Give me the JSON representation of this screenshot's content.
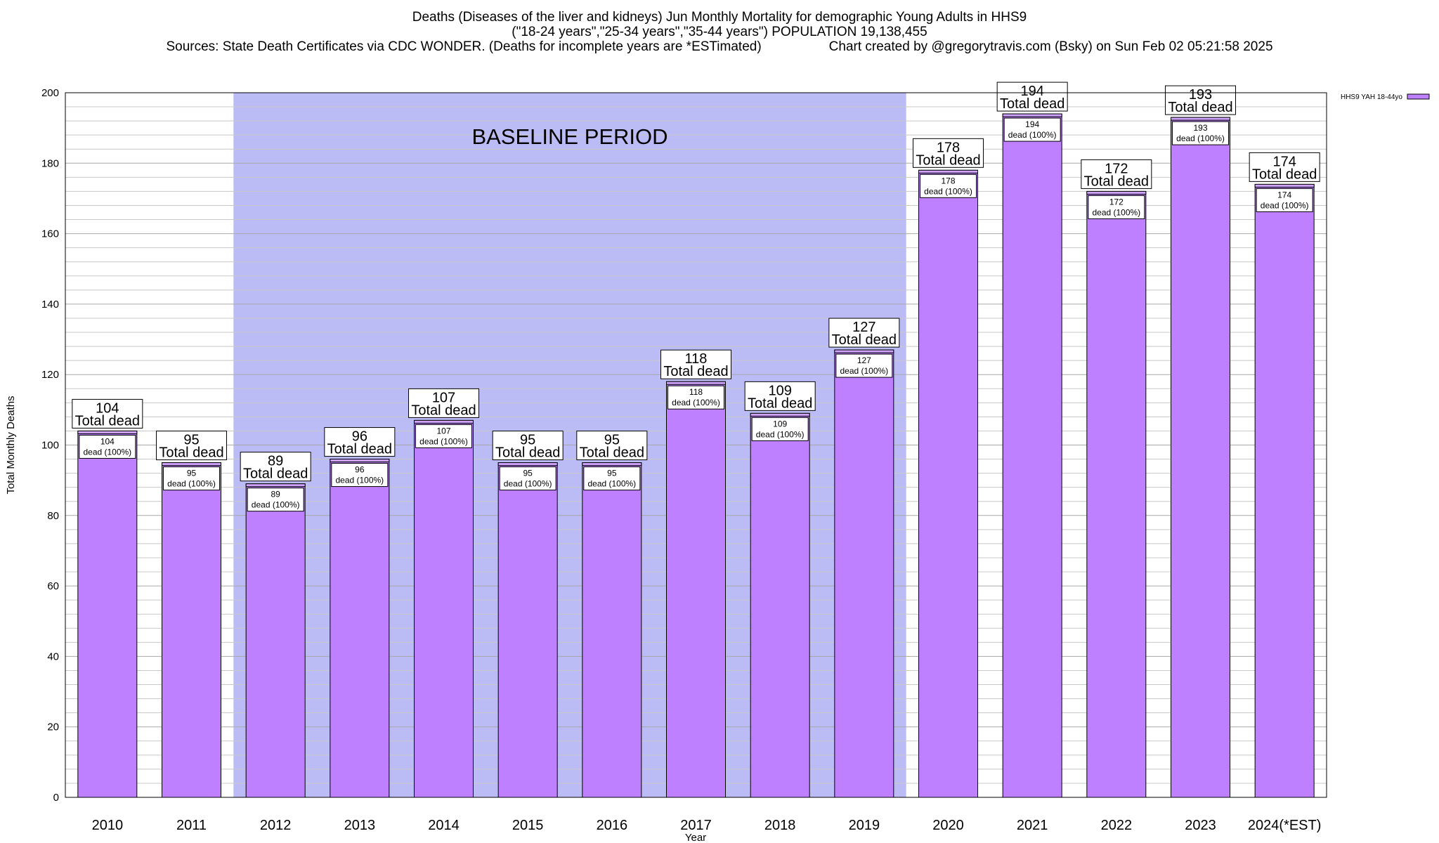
{
  "chart_data": {
    "type": "bar",
    "title": "Deaths (Diseases of the liver and kidneys) Jun Monthly Mortality for demographic Young Adults in HHS9",
    "subtitle": "(\"18-24 years\",\"25-34 years\",\"35-44 years\") POPULATION 19,138,455",
    "sources": "Sources: State Death Certificates via CDC WONDER. (Deaths for incomplete years are *ESTimated)",
    "credit": "Chart created by @gregorytravis.com (Bsky) on Sun Feb 02 05:21:58 2025",
    "xlabel": "Year",
    "ylabel": "Total Monthly Deaths",
    "categories": [
      "2010",
      "2011",
      "2012",
      "2013",
      "2014",
      "2015",
      "2016",
      "2017",
      "2018",
      "2019",
      "2020",
      "2021",
      "2022",
      "2023",
      "2024(*EST)"
    ],
    "values": [
      104,
      95,
      89,
      96,
      107,
      95,
      95,
      118,
      109,
      127,
      178,
      194,
      172,
      193,
      174
    ],
    "ylim": [
      0,
      200
    ],
    "yticks": [
      0,
      20,
      40,
      60,
      80,
      100,
      120,
      140,
      160,
      180,
      200
    ],
    "grid": true,
    "legend": {
      "position": "top-right",
      "entries": [
        {
          "name": "HHS9 YAH 18-44yo",
          "color": "#bf80ff"
        }
      ]
    },
    "baseline": {
      "label": "BASELINE PERIOD",
      "from": "2012",
      "to": "2019",
      "color": "#bbbcf6"
    },
    "total_label_suffix": "Total dead",
    "inner_label_suffix": "dead (100%)",
    "bar_color": "#bf80ff",
    "bar_cap_color": "#cfa3ff"
  }
}
